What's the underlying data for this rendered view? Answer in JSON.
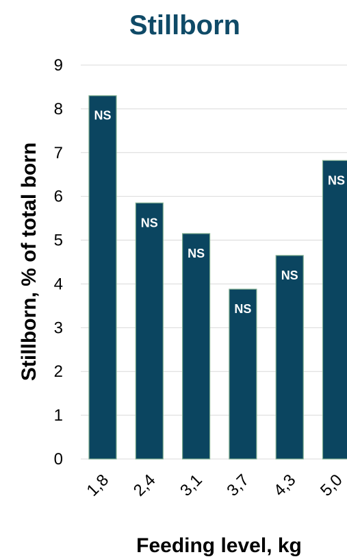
{
  "chart_data": {
    "type": "bar",
    "title": "Stillborn",
    "xlabel": "Feeding level, kg",
    "ylabel": "Stillborn, % of total born",
    "categories": [
      "1,8",
      "2,4",
      "3,1",
      "3,7",
      "4,3",
      "5,0"
    ],
    "values": [
      8.3,
      5.85,
      5.15,
      3.88,
      4.65,
      6.82
    ],
    "data_labels": [
      "NS",
      "NS",
      "NS",
      "NS",
      "NS",
      "NS"
    ],
    "ylim": [
      0,
      9
    ],
    "yticks": [
      0,
      1,
      2,
      3,
      4,
      5,
      6,
      7,
      8,
      9
    ],
    "grid": true,
    "legend": "none",
    "colors": {
      "bar": "#0b4560",
      "bar_edge": "#7fae8f",
      "title": "#0f4a67",
      "grid": "#d9d9d9"
    }
  }
}
